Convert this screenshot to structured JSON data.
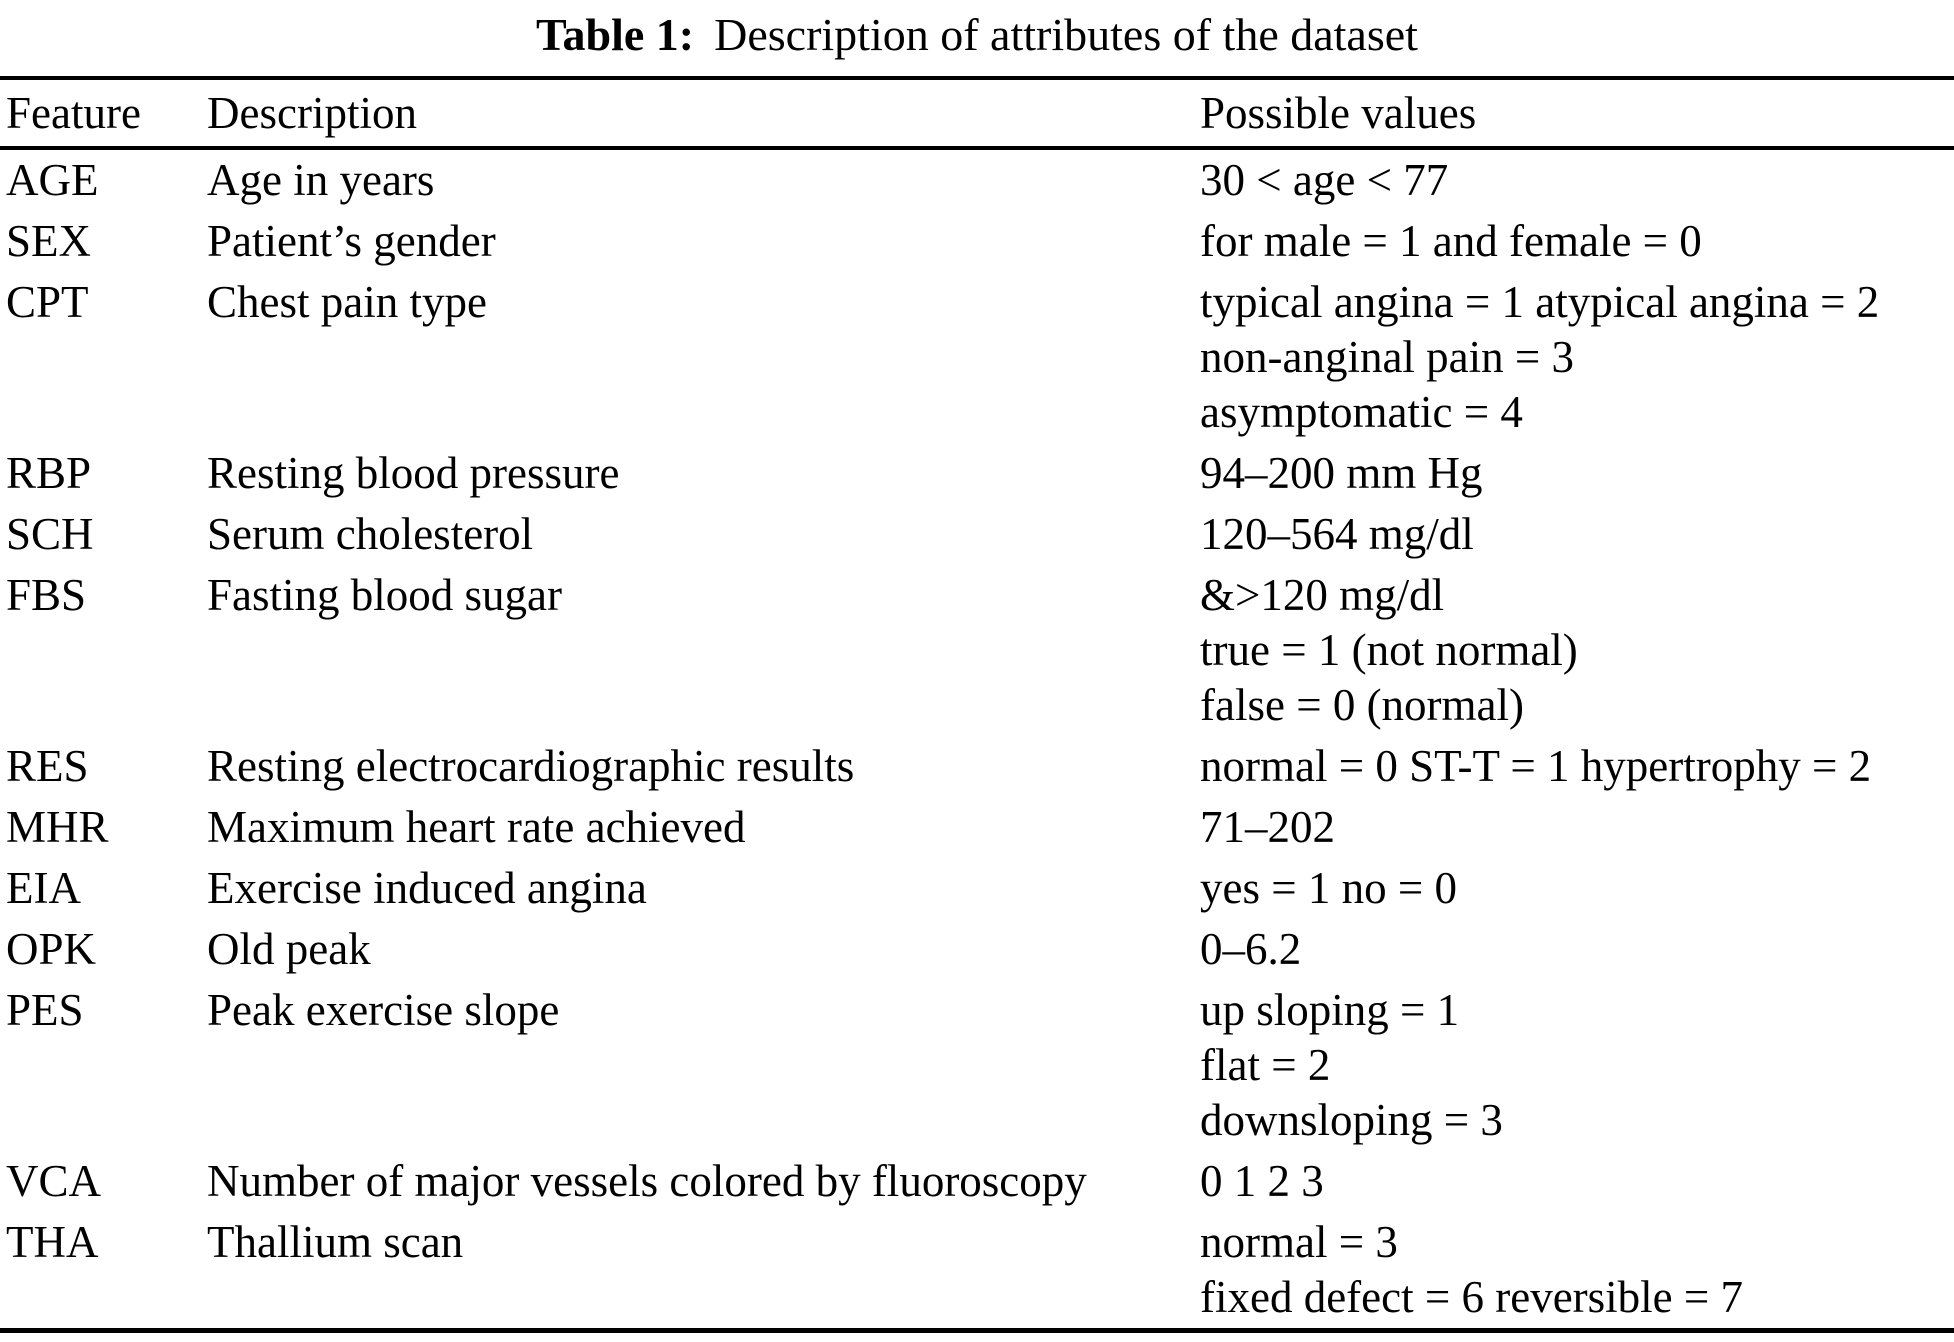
{
  "caption": {
    "label": "Table 1:",
    "text": "Description of attributes of the dataset"
  },
  "table": {
    "columns": [
      "Feature",
      "Description",
      "Possible values"
    ],
    "rows": [
      {
        "feature": "AGE",
        "description": "Age in years",
        "values": [
          "30 < age < 77"
        ]
      },
      {
        "feature": "SEX",
        "description": "Patient’s gender",
        "values": [
          "for male = 1 and female = 0"
        ]
      },
      {
        "feature": "CPT",
        "description": "Chest pain type",
        "values": [
          "typical angina = 1 atypical angina = 2",
          "non-anginal pain = 3",
          "asymptomatic = 4"
        ]
      },
      {
        "feature": "RBP",
        "description": "Resting blood pressure",
        "values": [
          "94–200 mm Hg"
        ]
      },
      {
        "feature": "SCH",
        "description": "Serum cholesterol",
        "values": [
          "120–564 mg/dl"
        ]
      },
      {
        "feature": "FBS",
        "description": "Fasting blood sugar",
        "values": [
          "&>120 mg/dl",
          "true = 1 (not normal)",
          "false = 0 (normal)"
        ]
      },
      {
        "feature": "RES",
        "description": "Resting electrocardiographic results",
        "values": [
          "normal = 0 ST-T = 1 hypertrophy = 2"
        ]
      },
      {
        "feature": "MHR",
        "description": "Maximum heart rate achieved",
        "values": [
          "71–202"
        ]
      },
      {
        "feature": "EIA",
        "description": "Exercise induced angina",
        "values": [
          "yes = 1 no = 0"
        ]
      },
      {
        "feature": "OPK",
        "description": "Old peak",
        "values": [
          "0–6.2"
        ]
      },
      {
        "feature": "PES",
        "description": "Peak exercise slope",
        "values": [
          "up sloping = 1",
          "flat = 2",
          "downsloping = 3"
        ]
      },
      {
        "feature": "VCA",
        "description": "Number of major vessels colored by fluoroscopy",
        "values": [
          "0 1 2 3"
        ]
      },
      {
        "feature": "THA",
        "description": "Thallium scan",
        "values": [
          "normal = 3",
          "fixed defect = 6 reversible = 7"
        ]
      }
    ]
  }
}
